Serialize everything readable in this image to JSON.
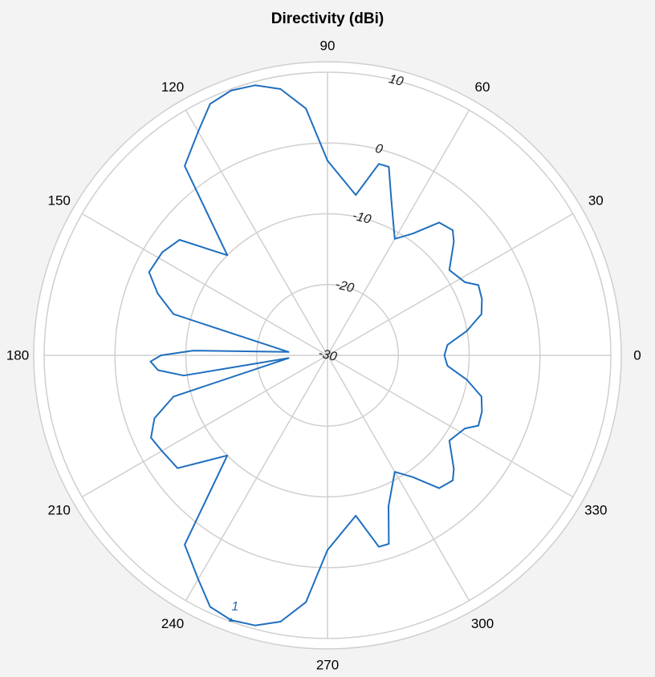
{
  "chart_data": {
    "type": "line",
    "projection": "polar",
    "title": "Directivity (dBi)",
    "angle_unit": "degrees",
    "angle_ticks": [
      0,
      30,
      60,
      90,
      120,
      150,
      180,
      210,
      240,
      270,
      300,
      330
    ],
    "rlim": [
      -30,
      10
    ],
    "r_ticks": [
      -30,
      -20,
      -10,
      0,
      10
    ],
    "grid": true,
    "colors": {
      "series": "#1f6fbf",
      "grid": "#cfcfcf",
      "background": "#ffffff",
      "page": "#f3f3f3"
    },
    "series": [
      {
        "color": "#1f6fbf",
        "points": [
          {
            "theta": 0,
            "r": -13.5
          },
          {
            "theta": 5,
            "r": -13.0
          },
          {
            "theta": 10,
            "r": -10.0
          },
          {
            "theta": 15,
            "r": -7.5
          },
          {
            "theta": 20,
            "r": -6.8
          },
          {
            "theta": 25,
            "r": -6.5
          },
          {
            "theta": 28,
            "r": -8.0
          },
          {
            "theta": 35,
            "r": -9.0
          },
          {
            "theta": 42,
            "r": -6.0
          },
          {
            "theta": 45,
            "r": -5.0
          },
          {
            "theta": 50,
            "r": -5.5
          },
          {
            "theta": 55,
            "r": -9.0
          },
          {
            "theta": 60,
            "r": -11.0
          },
          {
            "theta": 68,
            "r": -6.0
          },
          {
            "theta": 72,
            "r": -2.0
          },
          {
            "theta": 75,
            "r": -2.0
          },
          {
            "theta": 80,
            "r": -7.0
          },
          {
            "theta": 90,
            "r": -2.5
          },
          {
            "theta": 95,
            "r": 5.0
          },
          {
            "theta": 100,
            "r": 8.2
          },
          {
            "theta": 105,
            "r": 9.5
          },
          {
            "theta": 110,
            "r": 9.8
          },
          {
            "theta": 115,
            "r": 9.2
          },
          {
            "theta": 120,
            "r": 6.5
          },
          {
            "theta": 127,
            "r": 3.5
          },
          {
            "theta": 135,
            "r": -10.0
          },
          {
            "theta": 142,
            "r": -3.5
          },
          {
            "theta": 148,
            "r": -2.5
          },
          {
            "theta": 155,
            "r": -2.2
          },
          {
            "theta": 160,
            "r": -4.5
          },
          {
            "theta": 165,
            "r": -7.5
          },
          {
            "theta": 175,
            "r": -24.5
          },
          {
            "theta": 178,
            "r": -11.0
          },
          {
            "theta": 180,
            "r": -6.5
          },
          {
            "theta": 182,
            "r": -5.0
          },
          {
            "theta": 185,
            "r": -6.0
          },
          {
            "theta": 188,
            "r": -9.5
          },
          {
            "theta": 184,
            "r": -24.5
          },
          {
            "theta": 195,
            "r": -7.5
          },
          {
            "theta": 200,
            "r": -4.0
          },
          {
            "theta": 205,
            "r": -2.5
          },
          {
            "theta": 210,
            "r": -3.0
          },
          {
            "theta": 217,
            "r": -3.5
          },
          {
            "theta": 225,
            "r": -10.0
          },
          {
            "theta": 233,
            "r": 3.5
          },
          {
            "theta": 240,
            "r": 6.5
          },
          {
            "theta": 245,
            "r": 9.2
          },
          {
            "theta": 250,
            "r": 9.8
          },
          {
            "theta": 255,
            "r": 9.5
          },
          {
            "theta": 260,
            "r": 8.2
          },
          {
            "theta": 265,
            "r": 5.0
          },
          {
            "theta": 270,
            "r": -2.5
          },
          {
            "theta": 280,
            "r": -7.0
          },
          {
            "theta": 285,
            "r": -2.0
          },
          {
            "theta": 288,
            "r": -2.0
          },
          {
            "theta": 292,
            "r": -7.0
          },
          {
            "theta": 300,
            "r": -11.0
          },
          {
            "theta": 305,
            "r": -9.0
          },
          {
            "theta": 310,
            "r": -5.5
          },
          {
            "theta": 315,
            "r": -5.0
          },
          {
            "theta": 318,
            "r": -6.0
          },
          {
            "theta": 325,
            "r": -9.0
          },
          {
            "theta": 332,
            "r": -8.0
          },
          {
            "theta": 335,
            "r": -6.5
          },
          {
            "theta": 340,
            "r": -6.8
          },
          {
            "theta": 345,
            "r": -7.5
          },
          {
            "theta": 350,
            "r": -10.0
          },
          {
            "theta": 355,
            "r": -13.0
          },
          {
            "theta": 360,
            "r": -13.5
          }
        ]
      }
    ],
    "marker": {
      "label": "1",
      "theta": 250,
      "r": 9.8
    }
  }
}
